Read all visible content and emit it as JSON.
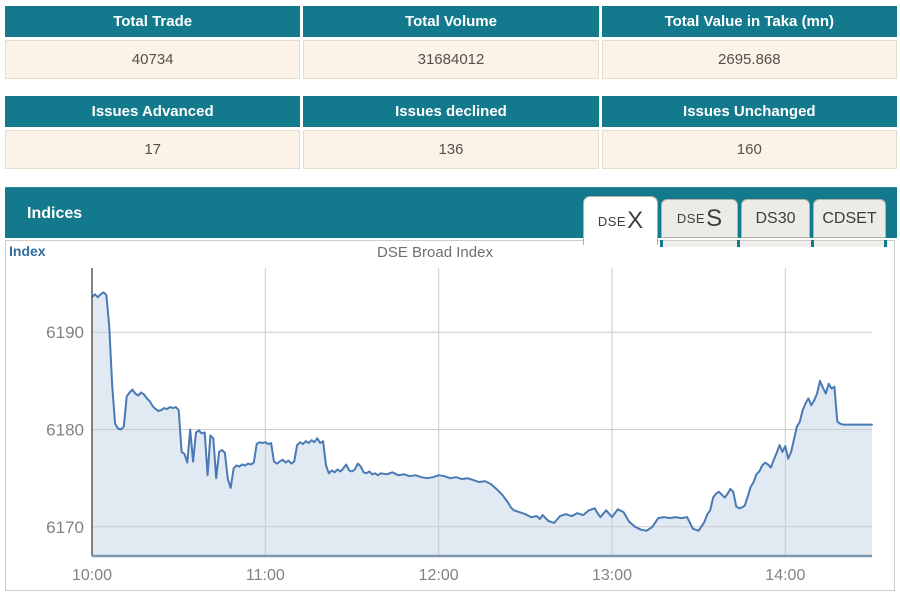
{
  "summary_tables": {
    "trade": {
      "headers": [
        "Total Trade",
        "Total Volume",
        "Total Value in Taka (mn)"
      ],
      "values": [
        "40734",
        "31684012",
        "2695.868"
      ]
    },
    "issues": {
      "headers": [
        "Issues Advanced",
        "Issues declined",
        "Issues Unchanged"
      ],
      "values": [
        "17",
        "136",
        "160"
      ]
    }
  },
  "indices_panel": {
    "title": "Indices",
    "tabs": [
      {
        "label": "DSEX",
        "prefix": "DSE",
        "suffix": "X",
        "active": true
      },
      {
        "label": "DSES",
        "prefix": "DSE",
        "suffix": "S",
        "active": false
      },
      {
        "label": "DS30",
        "active": false
      },
      {
        "label": "CDSET",
        "active": false
      }
    ],
    "axis_label": "Index",
    "chart_title": "DSE Broad Index"
  },
  "colors": {
    "header_teal": "#13798c",
    "row_cream": "#fbf3e7",
    "value_text": "#57504a",
    "line": "#4a7ab5",
    "fill": "#e1e9f2",
    "grid": "#cbcbcb",
    "axis_line": "#5a5a5a",
    "baseline": "#7d97ad",
    "tick_text": "#828282",
    "index_label_blue": "#2f6d9d"
  },
  "chart_data": {
    "type": "area",
    "title": "DSE Broad Index",
    "series_name": "DSEX",
    "x_unit": "minutes since 10:00",
    "xlim": [
      0,
      270
    ],
    "ylim": [
      6167.0,
      6196.6
    ],
    "y_ticks": [
      6170,
      6180,
      6190
    ],
    "x_ticks": [
      {
        "m": 0,
        "label": "10:00"
      },
      {
        "m": 60,
        "label": "11:00"
      },
      {
        "m": 120,
        "label": "12:00"
      },
      {
        "m": 180,
        "label": "13:00"
      },
      {
        "m": 240,
        "label": "14:00"
      }
    ],
    "grid": true,
    "legend": false,
    "points": [
      [
        0,
        6193.6
      ],
      [
        1,
        6193.9
      ],
      [
        2,
        6193.6
      ],
      [
        3,
        6193.9
      ],
      [
        4,
        6194.1
      ],
      [
        5,
        6193.8
      ],
      [
        6,
        6190.5
      ],
      [
        7,
        6184.5
      ],
      [
        8,
        6180.6
      ],
      [
        9,
        6180.1
      ],
      [
        10,
        6180.0
      ],
      [
        11,
        6180.3
      ],
      [
        12,
        6183.4
      ],
      [
        13,
        6183.8
      ],
      [
        14,
        6184.1
      ],
      [
        15,
        6183.7
      ],
      [
        16,
        6183.5
      ],
      [
        17,
        6183.8
      ],
      [
        18,
        6183.6
      ],
      [
        19,
        6183.2
      ],
      [
        20,
        6182.9
      ],
      [
        21,
        6182.4
      ],
      [
        22,
        6182.1
      ],
      [
        23,
        6181.9
      ],
      [
        24,
        6182.0
      ],
      [
        25,
        6182.2
      ],
      [
        26,
        6182.1
      ],
      [
        27,
        6182.3
      ],
      [
        28,
        6182.2
      ],
      [
        29,
        6182.3
      ],
      [
        30,
        6182.0
      ],
      [
        31,
        6177.7
      ],
      [
        32,
        6177.5
      ],
      [
        33,
        6176.6
      ],
      [
        34,
        6180.0
      ],
      [
        35,
        6176.7
      ],
      [
        36,
        6179.7
      ],
      [
        37,
        6179.9
      ],
      [
        38,
        6179.6
      ],
      [
        39,
        6179.7
      ],
      [
        40,
        6175.3
      ],
      [
        41,
        6179.4
      ],
      [
        42,
        6179.1
      ],
      [
        43,
        6175.0
      ],
      [
        44,
        6177.7
      ],
      [
        45,
        6177.9
      ],
      [
        46,
        6177.6
      ],
      [
        47,
        6174.9
      ],
      [
        48,
        6174.0
      ],
      [
        49,
        6176.0
      ],
      [
        50,
        6176.3
      ],
      [
        51,
        6176.2
      ],
      [
        52,
        6176.4
      ],
      [
        53,
        6176.3
      ],
      [
        54,
        6176.5
      ],
      [
        55,
        6176.4
      ],
      [
        56,
        6176.6
      ],
      [
        57,
        6178.5
      ],
      [
        58,
        6178.7
      ],
      [
        59,
        6178.6
      ],
      [
        60,
        6178.7
      ],
      [
        61,
        6178.5
      ],
      [
        62,
        6178.6
      ],
      [
        63,
        6176.7
      ],
      [
        64,
        6176.5
      ],
      [
        65,
        6176.7
      ],
      [
        66,
        6176.9
      ],
      [
        67,
        6176.6
      ],
      [
        68,
        6176.8
      ],
      [
        69,
        6176.5
      ],
      [
        70,
        6176.7
      ],
      [
        71,
        6178.4
      ],
      [
        72,
        6178.7
      ],
      [
        73,
        6178.5
      ],
      [
        74,
        6178.8
      ],
      [
        75,
        6178.6
      ],
      [
        76,
        6178.9
      ],
      [
        77,
        6178.7
      ],
      [
        78,
        6179.1
      ],
      [
        79,
        6178.6
      ],
      [
        80,
        6178.8
      ],
      [
        81,
        6176.3
      ],
      [
        82,
        6175.5
      ],
      [
        83,
        6175.8
      ],
      [
        84,
        6175.6
      ],
      [
        85,
        6175.9
      ],
      [
        86,
        6175.7
      ],
      [
        87,
        6176.0
      ],
      [
        88,
        6176.4
      ],
      [
        89,
        6175.8
      ],
      [
        90,
        6175.7
      ],
      [
        91,
        6175.9
      ],
      [
        92,
        6176.5
      ],
      [
        93,
        6176.2
      ],
      [
        94,
        6175.6
      ],
      [
        95,
        6175.5
      ],
      [
        96,
        6175.7
      ],
      [
        97,
        6175.4
      ],
      [
        98,
        6175.5
      ],
      [
        99,
        6175.3
      ],
      [
        100,
        6175.5
      ],
      [
        102,
        6175.4
      ],
      [
        104,
        6175.6
      ],
      [
        106,
        6175.3
      ],
      [
        108,
        6175.4
      ],
      [
        110,
        6175.2
      ],
      [
        112,
        6175.3
      ],
      [
        114,
        6175.1
      ],
      [
        116,
        6175.0
      ],
      [
        118,
        6175.1
      ],
      [
        120,
        6175.3
      ],
      [
        122,
        6175.2
      ],
      [
        124,
        6175.0
      ],
      [
        126,
        6175.1
      ],
      [
        128,
        6174.9
      ],
      [
        130,
        6175.0
      ],
      [
        132,
        6174.8
      ],
      [
        134,
        6174.6
      ],
      [
        136,
        6174.7
      ],
      [
        138,
        6174.4
      ],
      [
        140,
        6173.9
      ],
      [
        142,
        6173.3
      ],
      [
        144,
        6172.5
      ],
      [
        145,
        6172.0
      ],
      [
        146,
        6171.7
      ],
      [
        148,
        6171.5
      ],
      [
        150,
        6171.3
      ],
      [
        152,
        6171.0
      ],
      [
        154,
        6171.1
      ],
      [
        155,
        6170.8
      ],
      [
        156,
        6171.2
      ],
      [
        158,
        6170.6
      ],
      [
        160,
        6170.4
      ],
      [
        162,
        6171.1
      ],
      [
        164,
        6171.3
      ],
      [
        166,
        6171.1
      ],
      [
        168,
        6171.4
      ],
      [
        170,
        6171.2
      ],
      [
        172,
        6171.7
      ],
      [
        174,
        6171.9
      ],
      [
        175,
        6171.4
      ],
      [
        176,
        6171.0
      ],
      [
        178,
        6171.7
      ],
      [
        180,
        6171.0
      ],
      [
        182,
        6171.8
      ],
      [
        184,
        6171.5
      ],
      [
        186,
        6170.5
      ],
      [
        188,
        6170.0
      ],
      [
        190,
        6169.7
      ],
      [
        192,
        6169.6
      ],
      [
        194,
        6170.0
      ],
      [
        196,
        6170.9
      ],
      [
        198,
        6171.0
      ],
      [
        200,
        6170.9
      ],
      [
        202,
        6171.0
      ],
      [
        204,
        6170.9
      ],
      [
        206,
        6171.0
      ],
      [
        208,
        6169.8
      ],
      [
        210,
        6169.6
      ],
      [
        212,
        6170.5
      ],
      [
        213,
        6171.3
      ],
      [
        214,
        6171.7
      ],
      [
        215,
        6173.0
      ],
      [
        216,
        6173.4
      ],
      [
        217,
        6173.6
      ],
      [
        218,
        6173.3
      ],
      [
        219,
        6173.0
      ],
      [
        220,
        6173.4
      ],
      [
        221,
        6173.9
      ],
      [
        222,
        6173.6
      ],
      [
        223,
        6172.1
      ],
      [
        224,
        6171.9
      ],
      [
        225,
        6172.0
      ],
      [
        226,
        6172.2
      ],
      [
        228,
        6174.1
      ],
      [
        229,
        6174.6
      ],
      [
        230,
        6175.4
      ],
      [
        231,
        6175.7
      ],
      [
        232,
        6176.3
      ],
      [
        233,
        6176.6
      ],
      [
        234,
        6176.4
      ],
      [
        235,
        6176.1
      ],
      [
        236,
        6176.9
      ],
      [
        237,
        6177.6
      ],
      [
        238,
        6178.4
      ],
      [
        239,
        6177.7
      ],
      [
        240,
        6178.3
      ],
      [
        241,
        6177.0
      ],
      [
        242,
        6177.7
      ],
      [
        243,
        6179.0
      ],
      [
        244,
        6180.3
      ],
      [
        245,
        6180.8
      ],
      [
        246,
        6182.0
      ],
      [
        247,
        6182.7
      ],
      [
        248,
        6183.2
      ],
      [
        249,
        6182.5
      ],
      [
        250,
        6183.0
      ],
      [
        251,
        6183.7
      ],
      [
        252,
        6185.0
      ],
      [
        253,
        6184.3
      ],
      [
        254,
        6183.7
      ],
      [
        255,
        6184.7
      ],
      [
        256,
        6184.2
      ],
      [
        257,
        6184.4
      ],
      [
        258,
        6180.8
      ],
      [
        259,
        6180.6
      ],
      [
        260,
        6180.5
      ],
      [
        263,
        6180.5
      ],
      [
        266,
        6180.5
      ],
      [
        269,
        6180.5
      ],
      [
        270,
        6180.5
      ]
    ]
  }
}
